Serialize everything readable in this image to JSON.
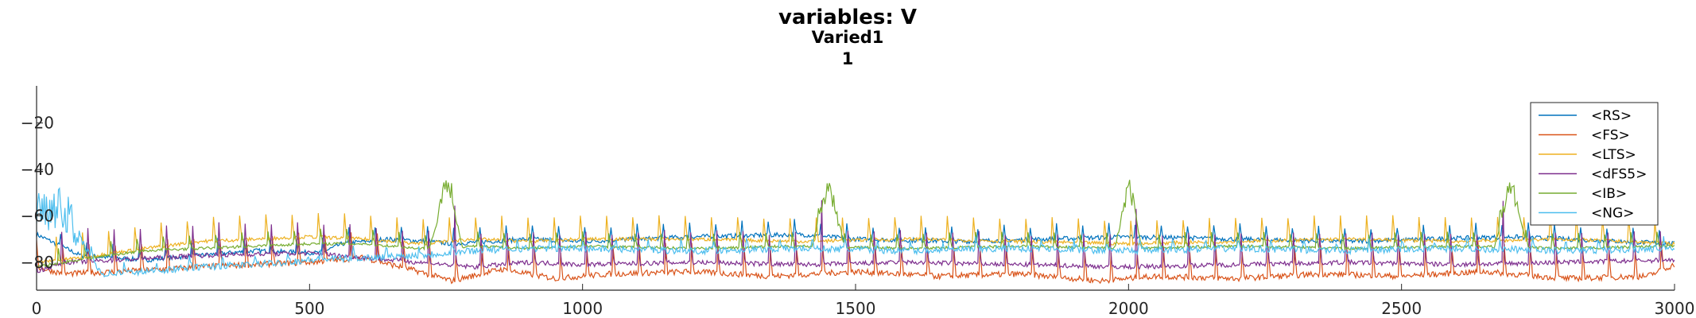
{
  "chart_data": {
    "type": "line",
    "title": "variables: V",
    "subtitle": "Varied1",
    "subtitle2": "1",
    "xlabel": "",
    "ylabel": "",
    "xlim": [
      0,
      3000
    ],
    "ylim": [
      -92,
      -4
    ],
    "xticks": [
      0,
      500,
      1000,
      1500,
      2000,
      2500,
      3000
    ],
    "yticks": [
      -80,
      -60,
      -40,
      -20
    ],
    "grid": false,
    "legend_position": "top-right",
    "series": [
      {
        "name": "<RS>",
        "color": "#0072BD",
        "values": [
          [
            0,
            -68
          ],
          [
            80,
            -77
          ],
          [
            200,
            -79
          ],
          [
            400,
            -75
          ],
          [
            520,
            -76
          ],
          [
            560,
            -72
          ],
          [
            640,
            -70
          ],
          [
            720,
            -71
          ],
          [
            760,
            -72
          ],
          [
            900,
            -70
          ],
          [
            1000,
            -71
          ],
          [
            1200,
            -69
          ],
          [
            1400,
            -68
          ],
          [
            1500,
            -70
          ],
          [
            1700,
            -71
          ],
          [
            2000,
            -69
          ],
          [
            2200,
            -70
          ],
          [
            2400,
            -71
          ],
          [
            2700,
            -69
          ],
          [
            3000,
            -72
          ]
        ]
      },
      {
        "name": "<FS>",
        "color": "#D95319",
        "values": [
          [
            0,
            -82
          ],
          [
            50,
            -85
          ],
          [
            150,
            -84
          ],
          [
            300,
            -82
          ],
          [
            500,
            -80
          ],
          [
            600,
            -78
          ],
          [
            700,
            -84
          ],
          [
            760,
            -88
          ],
          [
            850,
            -83
          ],
          [
            950,
            -87
          ],
          [
            1050,
            -85
          ],
          [
            1200,
            -84
          ],
          [
            1350,
            -86
          ],
          [
            1500,
            -84
          ],
          [
            1650,
            -86
          ],
          [
            1800,
            -85
          ],
          [
            1950,
            -88
          ],
          [
            2050,
            -86
          ],
          [
            2200,
            -87
          ],
          [
            2350,
            -85
          ],
          [
            2500,
            -86
          ],
          [
            2650,
            -84
          ],
          [
            2800,
            -87
          ],
          [
            2950,
            -86
          ],
          [
            3000,
            -81
          ]
        ]
      },
      {
        "name": "<LTS>",
        "color": "#EDB120",
        "values": [
          [
            0,
            -80
          ],
          [
            80,
            -78
          ],
          [
            200,
            -74
          ],
          [
            300,
            -71
          ],
          [
            400,
            -70
          ],
          [
            500,
            -69
          ],
          [
            600,
            -70
          ],
          [
            700,
            -72
          ],
          [
            800,
            -70
          ],
          [
            900,
            -71
          ],
          [
            1000,
            -70
          ],
          [
            1200,
            -70
          ],
          [
            1400,
            -71
          ],
          [
            1600,
            -70
          ],
          [
            1800,
            -71
          ],
          [
            2000,
            -72
          ],
          [
            2200,
            -71
          ],
          [
            2400,
            -70
          ],
          [
            2600,
            -71
          ],
          [
            2800,
            -70
          ],
          [
            3000,
            -72
          ]
        ]
      },
      {
        "name": "<dFS5>",
        "color": "#7E2F8E",
        "values": [
          [
            0,
            -84
          ],
          [
            50,
            -80
          ],
          [
            150,
            -79
          ],
          [
            300,
            -77
          ],
          [
            500,
            -76
          ],
          [
            600,
            -78
          ],
          [
            700,
            -80
          ],
          [
            800,
            -82
          ],
          [
            900,
            -80
          ],
          [
            1000,
            -81
          ],
          [
            1200,
            -80
          ],
          [
            1400,
            -81
          ],
          [
            1600,
            -80
          ],
          [
            1800,
            -81
          ],
          [
            2000,
            -82
          ],
          [
            2200,
            -81
          ],
          [
            2400,
            -80
          ],
          [
            2600,
            -81
          ],
          [
            2800,
            -80
          ],
          [
            3000,
            -79
          ]
        ]
      },
      {
        "name": "<IB>",
        "color": "#77AC30",
        "values": [
          [
            0,
            -82
          ],
          [
            100,
            -78
          ],
          [
            200,
            -75
          ],
          [
            300,
            -74
          ],
          [
            400,
            -73
          ],
          [
            500,
            -72
          ],
          [
            600,
            -72
          ],
          [
            700,
            -74
          ],
          [
            800,
            -73
          ],
          [
            900,
            -74
          ],
          [
            1000,
            -73
          ],
          [
            1200,
            -74
          ],
          [
            1400,
            -73
          ],
          [
            1600,
            -74
          ],
          [
            1800,
            -73
          ],
          [
            2000,
            -74
          ],
          [
            2200,
            -73
          ],
          [
            2400,
            -74
          ],
          [
            2600,
            -73
          ],
          [
            2800,
            -74
          ],
          [
            3000,
            -73
          ]
        ]
      },
      {
        "name": "<NG>",
        "color": "#4DBEEE",
        "values": [
          [
            0,
            -55
          ],
          [
            60,
            -60
          ],
          [
            80,
            -70
          ],
          [
            120,
            -85
          ],
          [
            200,
            -84
          ],
          [
            300,
            -82
          ],
          [
            400,
            -81
          ],
          [
            500,
            -79
          ],
          [
            600,
            -78
          ],
          [
            700,
            -77
          ],
          [
            800,
            -75
          ],
          [
            900,
            -74
          ],
          [
            1000,
            -74
          ],
          [
            1200,
            -75
          ],
          [
            1400,
            -74
          ],
          [
            1600,
            -75
          ],
          [
            1800,
            -74
          ],
          [
            2000,
            -75
          ],
          [
            2200,
            -74
          ],
          [
            2400,
            -75
          ],
          [
            2600,
            -74
          ],
          [
            2800,
            -75
          ],
          [
            3000,
            -74
          ]
        ]
      }
    ]
  }
}
